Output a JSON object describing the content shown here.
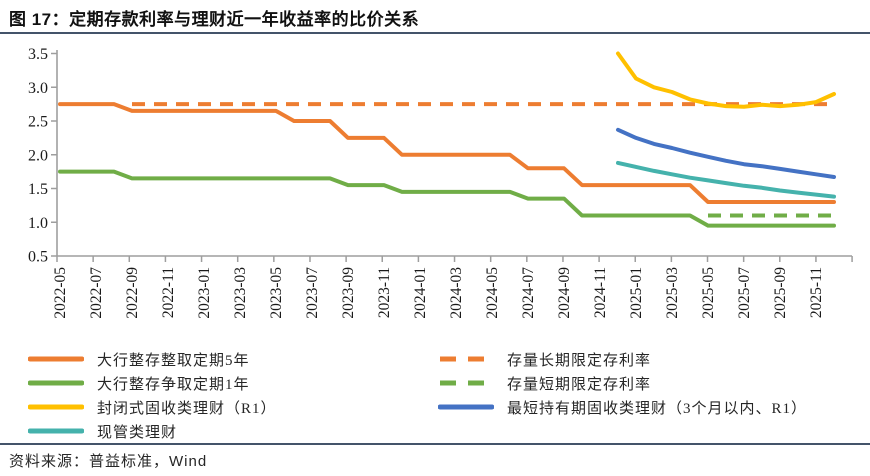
{
  "title": "图 17：定期存款利率与理财近一年收益率的比价关系",
  "source_note": "资料来源：普益标准，Wind",
  "colors": {
    "rule": "#44546A",
    "axis": "#9E9E9E",
    "axis_text": "#1a1a1a",
    "orange": "#ED7D31",
    "green": "#70AD47",
    "yellow": "#FFC000",
    "teal": "#45B2AC",
    "blue": "#4472C4"
  },
  "chart_data": {
    "type": "line",
    "title": "定期存款利率与理财近一年收益率的比价关系",
    "xlabel": "",
    "ylabel": "",
    "grid": false,
    "legend_position": "bottom",
    "ylim": [
      0.5,
      3.5
    ],
    "y_ticks": [
      "0.5",
      "1.0",
      "1.5",
      "2.0",
      "2.5",
      "3.0",
      "3.5"
    ],
    "x_label_every": 2,
    "x": [
      "2022-05",
      "2022-06",
      "2022-07",
      "2022-08",
      "2022-09",
      "2022-10",
      "2022-11",
      "2022-12",
      "2023-01",
      "2023-02",
      "2023-03",
      "2023-04",
      "2023-05",
      "2023-06",
      "2023-07",
      "2023-08",
      "2023-09",
      "2023-10",
      "2023-11",
      "2023-12",
      "2024-01",
      "2024-02",
      "2024-03",
      "2024-04",
      "2024-05",
      "2024-06",
      "2024-07",
      "2024-08",
      "2024-09",
      "2024-10",
      "2024-11",
      "2024-12",
      "2025-01",
      "2025-02",
      "2025-03",
      "2025-04",
      "2025-05",
      "2025-06",
      "2025-07",
      "2025-08",
      "2025-09",
      "2025-10",
      "2025-11",
      "2025-12"
    ],
    "series": [
      {
        "name": "大行整存整取定期5年",
        "color": "#ED7D31",
        "style": "solid",
        "legend_column": "left",
        "start_index": 0,
        "values": [
          2.75,
          2.75,
          2.75,
          2.75,
          2.65,
          2.65,
          2.65,
          2.65,
          2.65,
          2.65,
          2.65,
          2.65,
          2.65,
          2.5,
          2.5,
          2.5,
          2.25,
          2.25,
          2.25,
          2.0,
          2.0,
          2.0,
          2.0,
          2.0,
          2.0,
          2.0,
          1.8,
          1.8,
          1.8,
          1.55,
          1.55,
          1.55,
          1.55,
          1.55,
          1.55,
          1.55,
          1.3,
          1.3,
          1.3,
          1.3,
          1.3,
          1.3,
          1.3,
          1.3
        ]
      },
      {
        "name": "大行整存争取定期1年",
        "color": "#70AD47",
        "style": "solid",
        "legend_column": "left",
        "start_index": 0,
        "values": [
          1.75,
          1.75,
          1.75,
          1.75,
          1.65,
          1.65,
          1.65,
          1.65,
          1.65,
          1.65,
          1.65,
          1.65,
          1.65,
          1.65,
          1.65,
          1.65,
          1.55,
          1.55,
          1.55,
          1.45,
          1.45,
          1.45,
          1.45,
          1.45,
          1.45,
          1.45,
          1.35,
          1.35,
          1.35,
          1.1,
          1.1,
          1.1,
          1.1,
          1.1,
          1.1,
          1.1,
          0.95,
          0.95,
          0.95,
          0.95,
          0.95,
          0.95,
          0.95,
          0.95
        ]
      },
      {
        "name": "封闭式固收类理财（R1）",
        "color": "#FFC000",
        "style": "solid",
        "legend_column": "left",
        "start_index": 31,
        "values": [
          3.5,
          3.13,
          3.0,
          2.93,
          2.82,
          2.76,
          2.72,
          2.71,
          2.74,
          2.72,
          2.74,
          2.78,
          2.9
        ]
      },
      {
        "name": "现管类理财",
        "color": "#45B2AC",
        "style": "solid",
        "legend_column": "left",
        "start_index": 31,
        "values": [
          1.88,
          1.82,
          1.76,
          1.71,
          1.66,
          1.62,
          1.58,
          1.54,
          1.51,
          1.47,
          1.44,
          1.41,
          1.38
        ]
      },
      {
        "name": "存量长期限定存利率",
        "color": "#ED7D31",
        "style": "dashed",
        "legend_column": "right",
        "start_index": 4,
        "values": [
          2.75,
          2.75,
          2.75,
          2.75,
          2.75,
          2.75,
          2.75,
          2.75,
          2.75,
          2.75,
          2.75,
          2.75,
          2.75,
          2.75,
          2.75,
          2.75,
          2.75,
          2.75,
          2.75,
          2.75,
          2.75,
          2.75,
          2.75,
          2.75,
          2.75,
          2.75,
          2.75,
          2.75,
          2.75,
          2.75,
          2.75,
          2.75,
          2.75,
          2.75,
          2.75,
          2.75,
          2.75,
          2.75,
          2.75,
          2.75
        ]
      },
      {
        "name": "存量短期限定存利率",
        "color": "#70AD47",
        "style": "dashed",
        "legend_column": "right",
        "start_index": 36,
        "values": [
          1.1,
          1.1,
          1.1,
          1.1,
          1.1,
          1.1,
          1.1,
          1.1
        ]
      },
      {
        "name": "最短持有期固收类理财（3个月以内、R1）",
        "color": "#4472C4",
        "style": "solid",
        "legend_column": "right",
        "start_index": 31,
        "values": [
          2.37,
          2.25,
          2.16,
          2.1,
          2.03,
          1.97,
          1.91,
          1.86,
          1.83,
          1.79,
          1.75,
          1.71,
          1.67
        ]
      }
    ]
  }
}
